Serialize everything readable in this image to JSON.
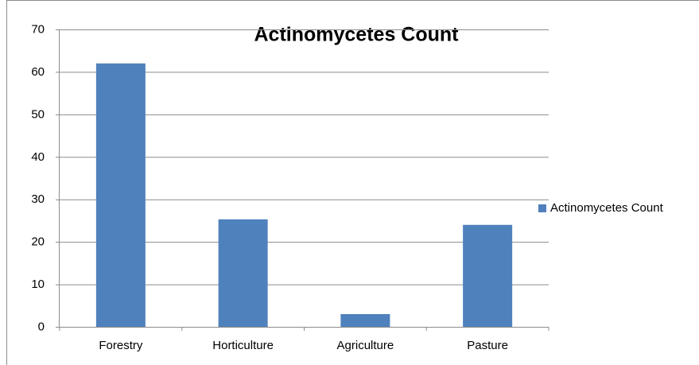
{
  "chart_data": {
    "type": "bar",
    "title": "Actinomycetes Count",
    "categories": [
      "Forestry",
      "Horticulture",
      "Agriculture",
      "Pasture"
    ],
    "series": [
      {
        "name": "Actinomycetes Count",
        "color": "#4f81bd",
        "values": [
          62,
          25.3,
          3,
          24
        ]
      }
    ],
    "ylim": [
      0,
      70
    ],
    "yticks": [
      0,
      10,
      20,
      30,
      40,
      50,
      60,
      70
    ],
    "grid": true,
    "legend": "right"
  }
}
